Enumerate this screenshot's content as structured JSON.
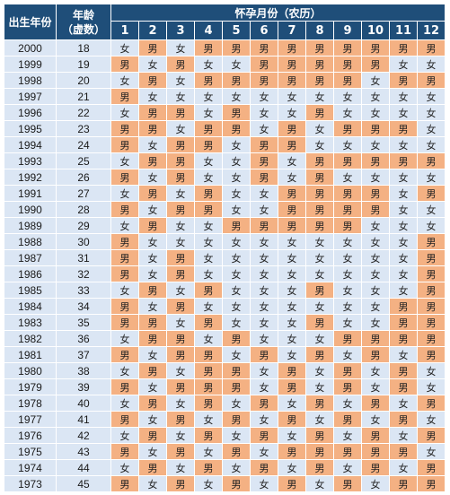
{
  "colors": {
    "header_bg": "#1f4e79",
    "boy_cell": "#f4b183",
    "girl_cell": "#dbe6f4"
  },
  "header": {
    "corner": "出生年份",
    "age_line1": "年龄",
    "age_line2": "（虚数）",
    "title": "怀孕月份（农历）",
    "months": [
      "1",
      "2",
      "3",
      "4",
      "5",
      "6",
      "7",
      "8",
      "9",
      "10",
      "11",
      "12"
    ]
  },
  "rows": [
    {
      "year": "2000",
      "age": "18",
      "cells": [
        "女",
        "男",
        "女",
        "男",
        "男",
        "男",
        "男",
        "男",
        "男",
        "男",
        "男",
        "男"
      ]
    },
    {
      "year": "1999",
      "age": "19",
      "cells": [
        "男",
        "女",
        "男",
        "女",
        "女",
        "男",
        "男",
        "男",
        "男",
        "男",
        "女",
        "女"
      ]
    },
    {
      "year": "1998",
      "age": "20",
      "cells": [
        "女",
        "男",
        "女",
        "男",
        "男",
        "男",
        "男",
        "男",
        "男",
        "女",
        "男",
        "男"
      ]
    },
    {
      "year": "1997",
      "age": "21",
      "cells": [
        "男",
        "女",
        "女",
        "女",
        "女",
        "女",
        "女",
        "女",
        "女",
        "女",
        "女",
        "女"
      ]
    },
    {
      "year": "1996",
      "age": "22",
      "cells": [
        "女",
        "男",
        "男",
        "女",
        "男",
        "女",
        "女",
        "男",
        "女",
        "女",
        "女",
        "女"
      ]
    },
    {
      "year": "1995",
      "age": "23",
      "cells": [
        "男",
        "男",
        "女",
        "男",
        "男",
        "女",
        "男",
        "女",
        "男",
        "男",
        "男",
        "女"
      ]
    },
    {
      "year": "1994",
      "age": "24",
      "cells": [
        "男",
        "女",
        "男",
        "男",
        "女",
        "男",
        "男",
        "女",
        "女",
        "女",
        "女",
        "女"
      ]
    },
    {
      "year": "1993",
      "age": "25",
      "cells": [
        "女",
        "男",
        "男",
        "女",
        "女",
        "男",
        "女",
        "男",
        "男",
        "男",
        "男",
        "男"
      ]
    },
    {
      "year": "1992",
      "age": "26",
      "cells": [
        "男",
        "女",
        "男",
        "女",
        "女",
        "男",
        "女",
        "男",
        "女",
        "女",
        "女",
        "女"
      ]
    },
    {
      "year": "1991",
      "age": "27",
      "cells": [
        "女",
        "男",
        "女",
        "男",
        "女",
        "女",
        "男",
        "男",
        "男",
        "男",
        "女",
        "男"
      ]
    },
    {
      "year": "1990",
      "age": "28",
      "cells": [
        "男",
        "女",
        "男",
        "男",
        "女",
        "女",
        "男",
        "男",
        "男",
        "男",
        "女",
        "女"
      ]
    },
    {
      "year": "1989",
      "age": "29",
      "cells": [
        "女",
        "男",
        "女",
        "女",
        "男",
        "男",
        "男",
        "男",
        "男",
        "女",
        "女",
        "女"
      ]
    },
    {
      "year": "1988",
      "age": "30",
      "cells": [
        "男",
        "女",
        "女",
        "女",
        "女",
        "女",
        "女",
        "女",
        "女",
        "女",
        "女",
        "男"
      ]
    },
    {
      "year": "1987",
      "age": "31",
      "cells": [
        "男",
        "女",
        "男",
        "女",
        "女",
        "女",
        "女",
        "女",
        "女",
        "女",
        "女",
        "男"
      ]
    },
    {
      "year": "1986",
      "age": "32",
      "cells": [
        "男",
        "女",
        "男",
        "女",
        "女",
        "女",
        "女",
        "女",
        "女",
        "女",
        "女",
        "男"
      ]
    },
    {
      "year": "1985",
      "age": "33",
      "cells": [
        "女",
        "男",
        "女",
        "男",
        "女",
        "女",
        "女",
        "男",
        "女",
        "女",
        "女",
        "男"
      ]
    },
    {
      "year": "1984",
      "age": "34",
      "cells": [
        "男",
        "女",
        "男",
        "女",
        "女",
        "女",
        "女",
        "女",
        "女",
        "女",
        "男",
        "男"
      ]
    },
    {
      "year": "1983",
      "age": "35",
      "cells": [
        "男",
        "男",
        "女",
        "男",
        "女",
        "女",
        "女",
        "男",
        "女",
        "女",
        "男",
        "男"
      ]
    },
    {
      "year": "1982",
      "age": "36",
      "cells": [
        "女",
        "男",
        "男",
        "女",
        "男",
        "女",
        "女",
        "女",
        "男",
        "男",
        "男",
        "男"
      ]
    },
    {
      "year": "1981",
      "age": "37",
      "cells": [
        "男",
        "女",
        "男",
        "男",
        "女",
        "男",
        "女",
        "男",
        "女",
        "男",
        "女",
        "男"
      ]
    },
    {
      "year": "1980",
      "age": "38",
      "cells": [
        "女",
        "男",
        "女",
        "男",
        "男",
        "女",
        "男",
        "女",
        "男",
        "女",
        "男",
        "女"
      ]
    },
    {
      "year": "1979",
      "age": "39",
      "cells": [
        "男",
        "女",
        "男",
        "男",
        "男",
        "女",
        "男",
        "女",
        "男",
        "女",
        "男",
        "女"
      ]
    },
    {
      "year": "1978",
      "age": "40",
      "cells": [
        "女",
        "男",
        "女",
        "男",
        "女",
        "男",
        "女",
        "男",
        "女",
        "男",
        "女",
        "男"
      ]
    },
    {
      "year": "1977",
      "age": "41",
      "cells": [
        "男",
        "女",
        "男",
        "女",
        "男",
        "女",
        "男",
        "女",
        "男",
        "女",
        "男",
        "女"
      ]
    },
    {
      "year": "1976",
      "age": "42",
      "cells": [
        "女",
        "男",
        "女",
        "男",
        "女",
        "男",
        "女",
        "男",
        "女",
        "男",
        "女",
        "男"
      ]
    },
    {
      "year": "1975",
      "age": "43",
      "cells": [
        "男",
        "女",
        "男",
        "女",
        "男",
        "女",
        "男",
        "男",
        "男",
        "男",
        "男",
        "女"
      ]
    },
    {
      "year": "1974",
      "age": "44",
      "cells": [
        "女",
        "男",
        "女",
        "男",
        "女",
        "男",
        "女",
        "男",
        "女",
        "男",
        "女",
        "男"
      ]
    },
    {
      "year": "1973",
      "age": "45",
      "cells": [
        "男",
        "女",
        "男",
        "女",
        "男",
        "女",
        "男",
        "女",
        "男",
        "女",
        "男",
        "男"
      ]
    }
  ]
}
